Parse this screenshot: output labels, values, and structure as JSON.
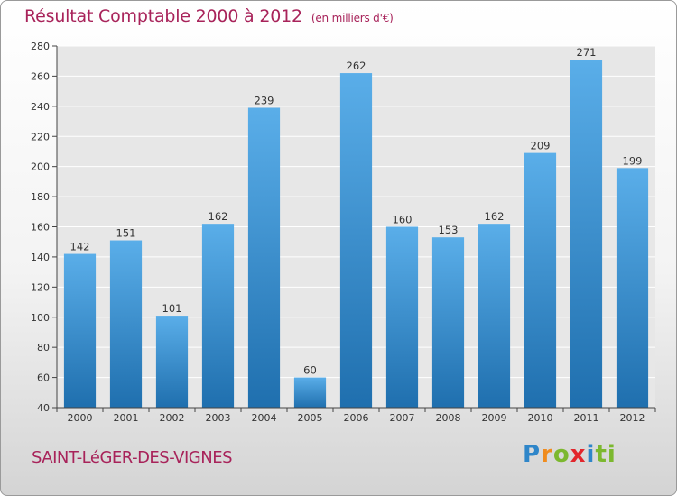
{
  "header": {
    "title": "Résultat Comptable 2000 à 2012",
    "unit": "(en milliers d'€)"
  },
  "footer": {
    "commune": "SAINT-LéGER-DES-VIGNES",
    "logo_letters": [
      "P",
      "r",
      "o",
      "x",
      "i",
      "t",
      "i"
    ]
  },
  "colors": {
    "title": "#a8235a",
    "bar_top": "#5aaee9",
    "bar_bottom": "#1f6fae"
  },
  "chart_data": {
    "type": "bar",
    "title": "Résultat Comptable 2000 à 2012",
    "xlabel": "",
    "ylabel": "",
    "categories": [
      "2000",
      "2001",
      "2002",
      "2003",
      "2004",
      "2005",
      "2006",
      "2007",
      "2008",
      "2009",
      "2010",
      "2011",
      "2012"
    ],
    "values": [
      142,
      151,
      101,
      162,
      239,
      60,
      262,
      160,
      153,
      162,
      209,
      271,
      199
    ],
    "ylim": [
      40,
      280
    ],
    "yticks": [
      40,
      60,
      80,
      100,
      120,
      140,
      160,
      180,
      200,
      220,
      240,
      260,
      280
    ],
    "grid": true
  }
}
